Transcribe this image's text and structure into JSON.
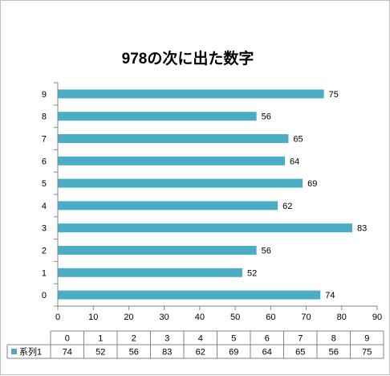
{
  "chart_data": {
    "type": "bar",
    "orientation": "horizontal",
    "title": "978の次に出た数字",
    "categories": [
      "0",
      "1",
      "2",
      "3",
      "4",
      "5",
      "6",
      "7",
      "8",
      "9"
    ],
    "series": [
      {
        "name": "系列1",
        "values": [
          74,
          52,
          56,
          83,
          62,
          69,
          64,
          65,
          56,
          75
        ]
      }
    ],
    "xlim": [
      0,
      90
    ],
    "x_ticks": [
      0,
      10,
      20,
      30,
      40,
      50,
      60,
      70,
      80,
      90
    ],
    "grid": false,
    "data_table": true,
    "bar_color": "#4BACC6"
  }
}
